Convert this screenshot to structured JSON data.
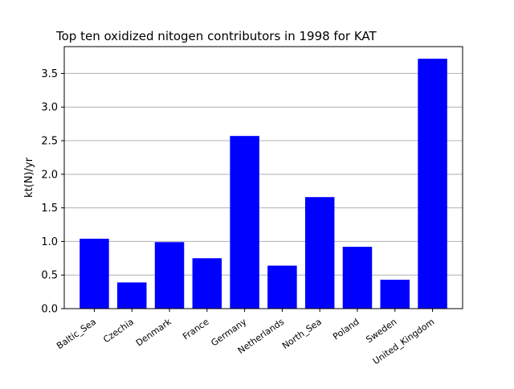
{
  "chart_data": {
    "type": "bar",
    "title": "Top ten oxidized nitogen contributors in 1998 for  KAT",
    "xlabel": "",
    "ylabel": "kt(N)/yr",
    "categories": [
      "Baltic_Sea",
      "Czechia",
      "Denmark",
      "France",
      "Germany",
      "Netherlands",
      "North_Sea",
      "Poland",
      "Sweden",
      "United_Kingdom"
    ],
    "values": [
      1.04,
      0.39,
      0.99,
      0.75,
      2.57,
      0.64,
      1.66,
      0.92,
      0.43,
      3.72
    ],
    "ylim": [
      0,
      3.9
    ],
    "yticks": [
      "0.0",
      "0.5",
      "1.0",
      "1.5",
      "2.0",
      "2.5",
      "3.0",
      "3.5"
    ],
    "grid": "y-axis",
    "bar_color": "#0000ff",
    "grid_color": "#b0b0b0"
  }
}
